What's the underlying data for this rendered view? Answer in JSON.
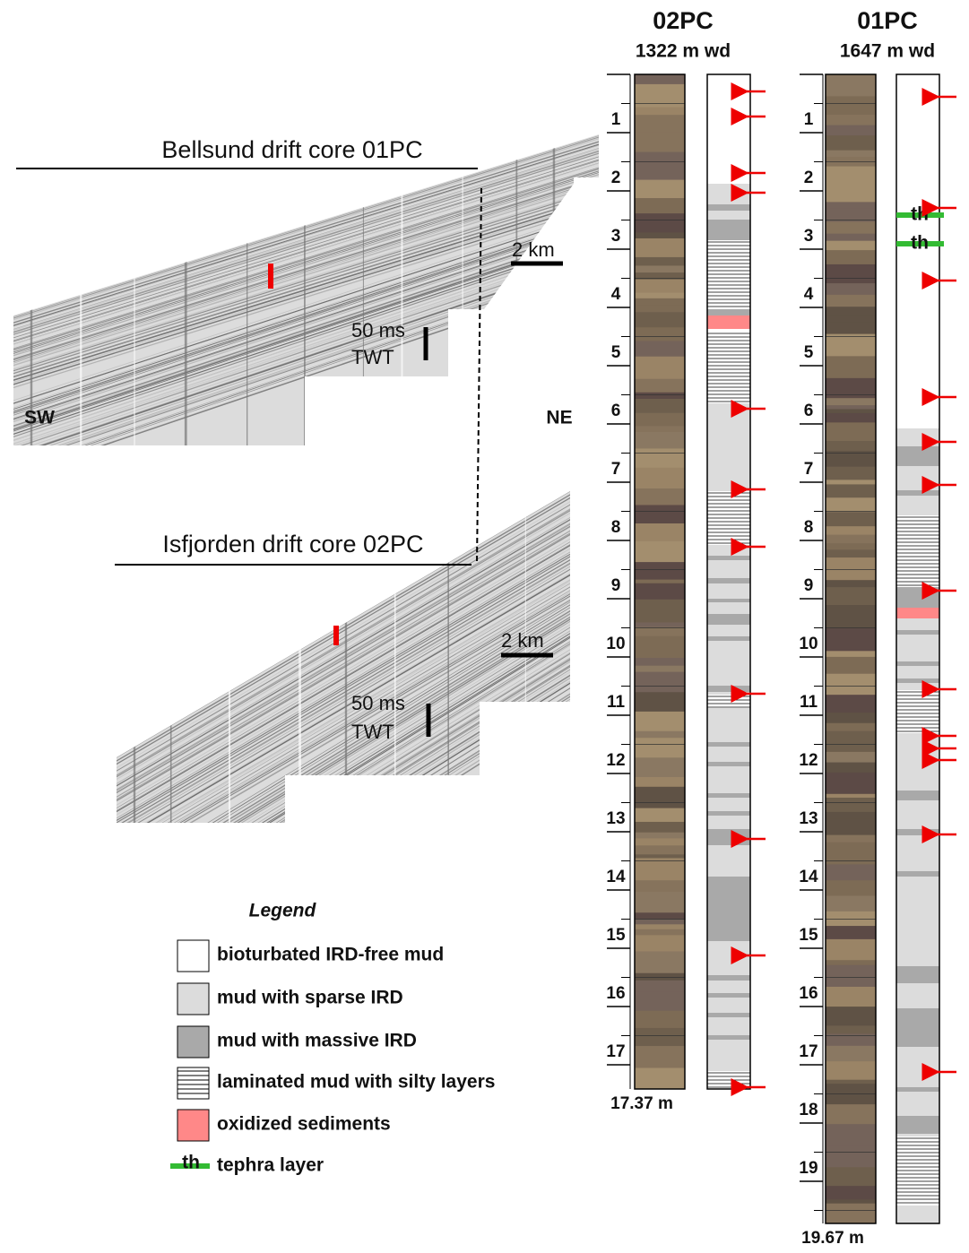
{
  "profiles": [
    {
      "title": "Bellsund drift core 01PC",
      "scale_distance": "2 km",
      "scale_time": "50 ms",
      "scale_time_unit": "TWT",
      "left_label": "SW",
      "right_label": "NE"
    },
    {
      "title": "Isfjorden drift core 02PC",
      "scale_distance": "2 km",
      "scale_time": "50 ms",
      "scale_time_unit": "TWT"
    }
  ],
  "legend": {
    "title": "Legend",
    "items": [
      {
        "label": "bioturbated IRD-free mud"
      },
      {
        "label": "mud with sparse IRD"
      },
      {
        "label": "mud with massive IRD"
      },
      {
        "label": "laminated mud with silty layers"
      },
      {
        "label": "oxidized sediments"
      },
      {
        "symbol": "th",
        "label": "tephra layer"
      }
    ]
  },
  "cores": [
    {
      "name": "02PC",
      "water_depth": "1322 m wd",
      "depth_ticks": [
        1,
        2,
        3,
        4,
        5,
        6,
        7,
        8,
        9,
        10,
        11,
        12,
        13,
        14,
        15,
        16,
        17
      ],
      "total_length": "17.37 m"
    },
    {
      "name": "01PC",
      "water_depth": "1647 m wd",
      "depth_ticks": [
        1,
        2,
        3,
        4,
        5,
        6,
        7,
        8,
        9,
        10,
        11,
        12,
        13,
        14,
        15,
        16,
        17,
        18,
        19
      ],
      "total_length": "19.67 m",
      "tephra_labels": [
        "th",
        "th"
      ]
    }
  ]
}
